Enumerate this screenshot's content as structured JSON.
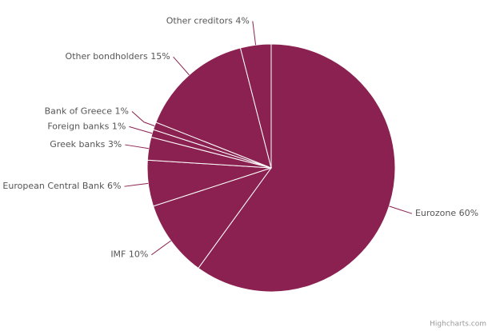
{
  "chart_data": {
    "type": "pie",
    "categories": [
      "Eurozone",
      "IMF",
      "European Central Bank",
      "Greek banks",
      "Foreign banks",
      "Bank of Greece",
      "Other bondholders",
      "Other creditors"
    ],
    "values": [
      60,
      10,
      6,
      3,
      1,
      1,
      15,
      4
    ],
    "value_labels": [
      "60%",
      "10%",
      "6%",
      "3%",
      "1%",
      "1%",
      "15%",
      "4%"
    ],
    "color": "#8a2150",
    "credits": "Highcharts.com"
  }
}
